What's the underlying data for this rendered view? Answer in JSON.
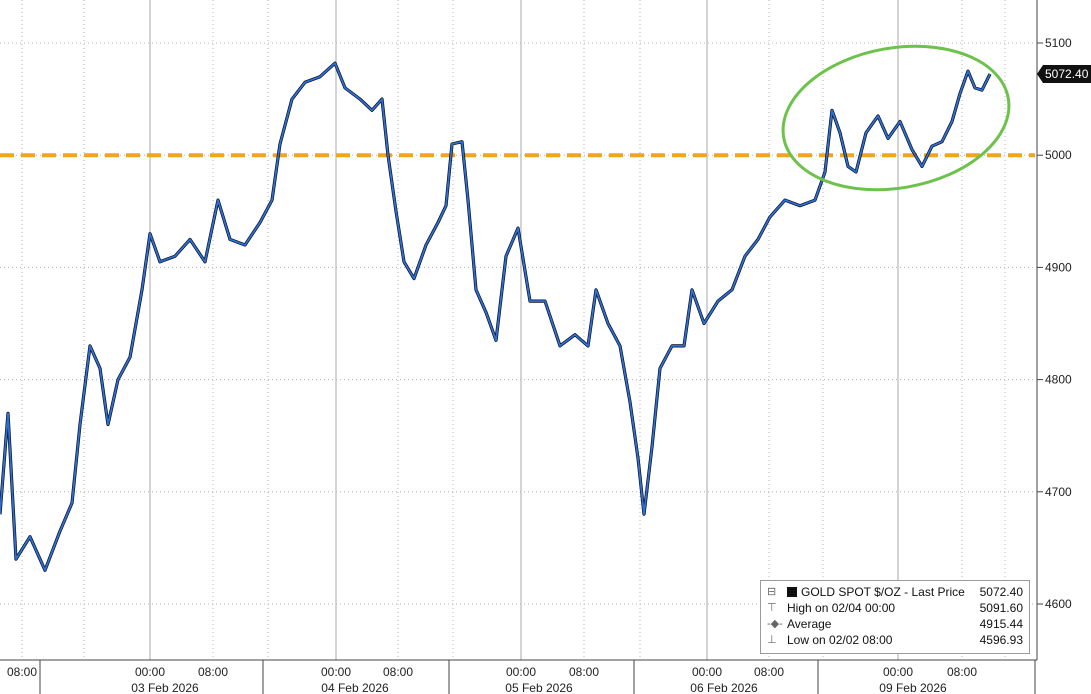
{
  "chart_data": {
    "type": "line",
    "title": "",
    "xlabel": "",
    "ylabel": "",
    "ylim": [
      4570,
      5130
    ],
    "y_ticks": [
      "4600",
      "4700",
      "4800",
      "4900",
      "5000",
      "5100"
    ],
    "x_time_labels": [
      "08:00",
      "00:00",
      "08:00",
      "00:00",
      "08:00",
      "00:00",
      "08:00",
      "00:00",
      "08:00",
      "00:00",
      "08:00"
    ],
    "x_date_labels": [
      "03 Feb 2026",
      "04 Feb 2026",
      "05 Feb 2026",
      "06 Feb 2026",
      "09 Feb 2026"
    ],
    "reference_line": {
      "value": 5000,
      "color": "#f2a51a",
      "style": "dashed"
    },
    "highlight": {
      "shape": "ellipse",
      "color": "#6cc24a"
    },
    "last_price_label": "5072.40",
    "series": [
      {
        "name": "GOLD SPOT $/OZ - Last Price",
        "color": "#2a6fdb",
        "points": [
          [
            0,
            4680
          ],
          [
            8,
            4770
          ],
          [
            16,
            4640
          ],
          [
            30,
            4660
          ],
          [
            45,
            4630
          ],
          [
            60,
            4665
          ],
          [
            72,
            4690
          ],
          [
            80,
            4760
          ],
          [
            90,
            4830
          ],
          [
            100,
            4810
          ],
          [
            108,
            4760
          ],
          [
            118,
            4800
          ],
          [
            130,
            4820
          ],
          [
            142,
            4880
          ],
          [
            150,
            4930
          ],
          [
            160,
            4905
          ],
          [
            175,
            4910
          ],
          [
            190,
            4925
          ],
          [
            205,
            4905
          ],
          [
            218,
            4960
          ],
          [
            230,
            4925
          ],
          [
            245,
            4920
          ],
          [
            260,
            4940
          ],
          [
            272,
            4960
          ],
          [
            280,
            5010
          ],
          [
            292,
            5050
          ],
          [
            305,
            5065
          ],
          [
            320,
            5070
          ],
          [
            335,
            5082
          ],
          [
            345,
            5060
          ],
          [
            360,
            5050
          ],
          [
            372,
            5040
          ],
          [
            382,
            5050
          ],
          [
            388,
            5000
          ],
          [
            396,
            4950
          ],
          [
            404,
            4905
          ],
          [
            414,
            4890
          ],
          [
            426,
            4920
          ],
          [
            438,
            4940
          ],
          [
            446,
            4955
          ],
          [
            452,
            5010
          ],
          [
            462,
            5012
          ],
          [
            468,
            4960
          ],
          [
            476,
            4880
          ],
          [
            486,
            4860
          ],
          [
            496,
            4835
          ],
          [
            506,
            4910
          ],
          [
            518,
            4935
          ],
          [
            530,
            4870
          ],
          [
            545,
            4870
          ],
          [
            560,
            4830
          ],
          [
            575,
            4840
          ],
          [
            588,
            4830
          ],
          [
            596,
            4880
          ],
          [
            608,
            4850
          ],
          [
            620,
            4830
          ],
          [
            630,
            4780
          ],
          [
            638,
            4730
          ],
          [
            644,
            4680
          ],
          [
            652,
            4740
          ],
          [
            660,
            4810
          ],
          [
            672,
            4830
          ],
          [
            684,
            4830
          ],
          [
            692,
            4880
          ],
          [
            704,
            4850
          ],
          [
            718,
            4870
          ],
          [
            732,
            4880
          ],
          [
            745,
            4910
          ],
          [
            758,
            4925
          ],
          [
            770,
            4945
          ],
          [
            785,
            4960
          ],
          [
            800,
            4955
          ],
          [
            815,
            4960
          ],
          [
            825,
            4985
          ],
          [
            832,
            5040
          ],
          [
            840,
            5020
          ],
          [
            848,
            4990
          ],
          [
            856,
            4985
          ],
          [
            866,
            5020
          ],
          [
            878,
            5035
          ],
          [
            888,
            5015
          ],
          [
            900,
            5030
          ],
          [
            912,
            5005
          ],
          [
            922,
            4990
          ],
          [
            932,
            5008
          ],
          [
            942,
            5012
          ],
          [
            952,
            5030
          ],
          [
            960,
            5055
          ],
          [
            968,
            5075
          ],
          [
            975,
            5060
          ],
          [
            982,
            5058
          ],
          [
            990,
            5072.4
          ]
        ]
      }
    ],
    "legend": {
      "placement": "bottom-right",
      "rows": [
        {
          "label": "GOLD SPOT $/OZ - Last Price",
          "value": "5072.40"
        },
        {
          "label": "High on 02/04 00:00",
          "value": "5091.60"
        },
        {
          "label": "Average",
          "value": "4915.44"
        },
        {
          "label": "Low on 02/02 08:00",
          "value": "4596.93"
        }
      ]
    }
  }
}
